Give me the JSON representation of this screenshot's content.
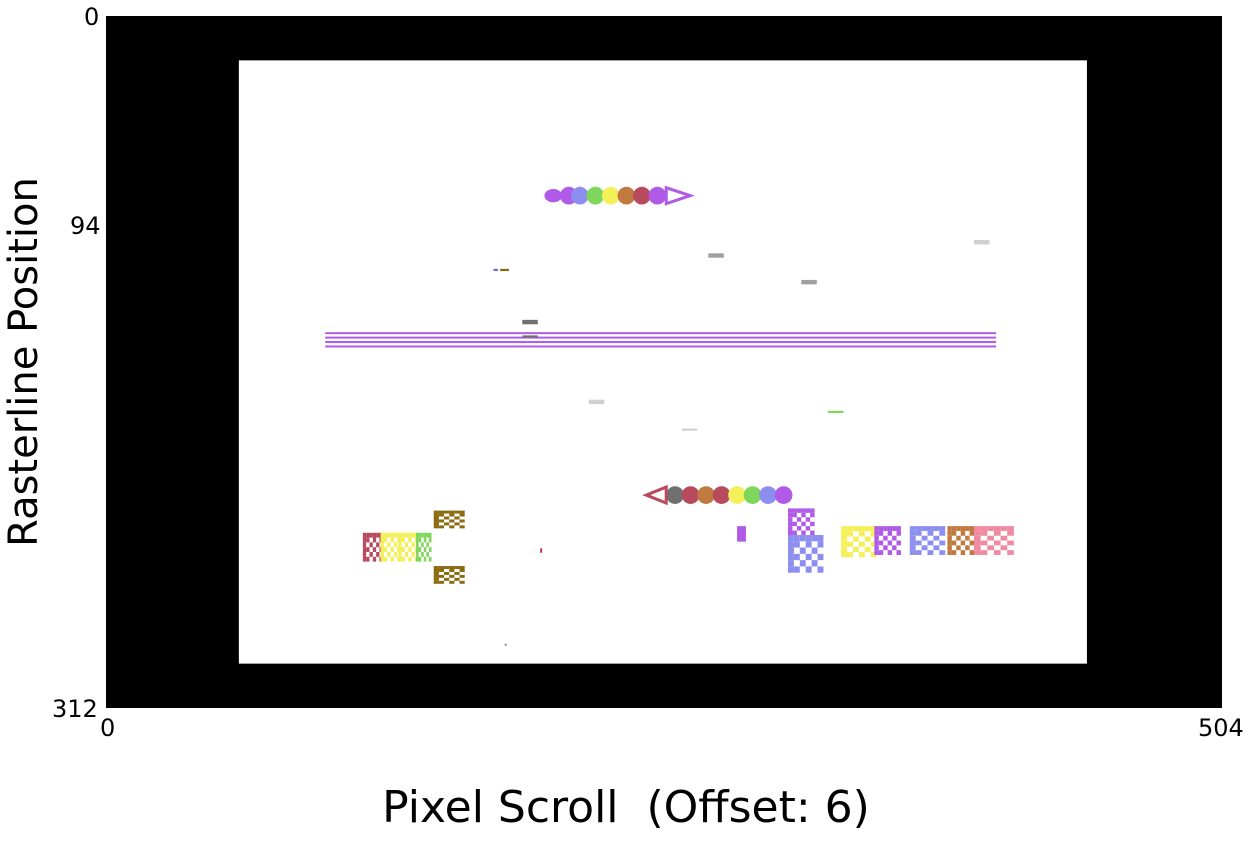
{
  "axes": {
    "xlabel": "Pixel Scroll  (Offset: 6)",
    "ylabel": "Rasterline Position",
    "x_ticks": [
      "0",
      "504"
    ],
    "y_ticks": [
      "0",
      "94",
      "312"
    ],
    "x_range": [
      0,
      504
    ],
    "y_range": [
      0,
      312
    ]
  },
  "screen": {
    "border_color": "#000000",
    "background_color": "#ffffff",
    "visible_area_x": [
      60,
      443
    ],
    "visible_area_y": [
      20,
      292
    ]
  },
  "sprites": [
    {
      "name": "caterpillar-right-segment",
      "x": 198,
      "y": 78,
      "w": 8,
      "h": 6,
      "color": "#b05ae8"
    },
    {
      "name": "caterpillar-right-segment",
      "x": 205,
      "y": 77,
      "w": 8,
      "h": 8,
      "color": "#b05ae8"
    },
    {
      "name": "caterpillar-right-segment",
      "x": 210,
      "y": 77,
      "w": 8,
      "h": 8,
      "color": "#8d8ff0"
    },
    {
      "name": "caterpillar-right-segment",
      "x": 217,
      "y": 77,
      "w": 8,
      "h": 8,
      "color": "#7ed65a"
    },
    {
      "name": "caterpillar-right-segment",
      "x": 224,
      "y": 77,
      "w": 8,
      "h": 8,
      "color": "#f4f05a"
    },
    {
      "name": "caterpillar-right-segment",
      "x": 231,
      "y": 77,
      "w": 8,
      "h": 8,
      "color": "#c07a40"
    },
    {
      "name": "caterpillar-right-segment",
      "x": 238,
      "y": 77,
      "w": 8,
      "h": 8,
      "color": "#b84a5e"
    },
    {
      "name": "caterpillar-right-segment",
      "x": 245,
      "y": 77,
      "w": 8,
      "h": 8,
      "color": "#b05ae8"
    },
    {
      "name": "caterpillar-left-segment",
      "x": 253,
      "y": 212,
      "w": 8,
      "h": 8,
      "color": "#707070"
    },
    {
      "name": "caterpillar-left-segment",
      "x": 260,
      "y": 212,
      "w": 8,
      "h": 8,
      "color": "#b84a5e"
    },
    {
      "name": "caterpillar-left-segment",
      "x": 267,
      "y": 212,
      "w": 8,
      "h": 8,
      "color": "#c07a40"
    },
    {
      "name": "caterpillar-left-segment",
      "x": 274,
      "y": 212,
      "w": 8,
      "h": 8,
      "color": "#b84a5e"
    },
    {
      "name": "caterpillar-left-segment",
      "x": 281,
      "y": 212,
      "w": 8,
      "h": 8,
      "color": "#f4f05a"
    },
    {
      "name": "caterpillar-left-segment",
      "x": 288,
      "y": 212,
      "w": 8,
      "h": 8,
      "color": "#7ed65a"
    },
    {
      "name": "caterpillar-left-segment",
      "x": 295,
      "y": 212,
      "w": 8,
      "h": 8,
      "color": "#8d8ff0"
    },
    {
      "name": "caterpillar-left-segment",
      "x": 302,
      "y": 212,
      "w": 8,
      "h": 8,
      "color": "#b05ae8"
    },
    {
      "name": "small-dash",
      "x": 175,
      "y": 114,
      "w": 2,
      "h": 1,
      "color": "#6b6bd8"
    },
    {
      "name": "small-dash",
      "x": 178,
      "y": 114,
      "w": 4,
      "h": 1,
      "color": "#8b6a10"
    },
    {
      "name": "grey-dash",
      "x": 272,
      "y": 107,
      "w": 7,
      "h": 2,
      "color": "#a0a0a0"
    },
    {
      "name": "grey-dash",
      "x": 314,
      "y": 119,
      "w": 7,
      "h": 2,
      "color": "#a0a0a0"
    },
    {
      "name": "light-dash",
      "x": 392,
      "y": 101,
      "w": 7,
      "h": 2,
      "color": "#d0d0d0"
    },
    {
      "name": "dark-dash",
      "x": 188,
      "y": 137,
      "w": 7,
      "h": 2,
      "color": "#707070"
    },
    {
      "name": "dark-dash",
      "x": 188,
      "y": 144,
      "w": 7,
      "h": 1,
      "color": "#707070"
    },
    {
      "name": "light-dash",
      "x": 218,
      "y": 173,
      "w": 7,
      "h": 2,
      "color": "#d0d0d0"
    },
    {
      "name": "light-dash",
      "x": 260,
      "y": 186,
      "w": 7,
      "h": 1,
      "color": "#d0d0d0"
    },
    {
      "name": "green-dash",
      "x": 326,
      "y": 178,
      "w": 7,
      "h": 1,
      "color": "#7ed65a"
    },
    {
      "name": "maze-glyph",
      "x": 116,
      "y": 233,
      "w": 9,
      "h": 13,
      "color": "#b84a5e"
    },
    {
      "name": "maze-glyph",
      "x": 124,
      "y": 233,
      "w": 9,
      "h": 13,
      "color": "#f4f05a"
    },
    {
      "name": "maze-glyph",
      "x": 132,
      "y": 233,
      "w": 9,
      "h": 13,
      "color": "#f4f05a"
    },
    {
      "name": "maze-glyph",
      "x": 140,
      "y": 233,
      "w": 7,
      "h": 13,
      "color": "#7ed65a"
    },
    {
      "name": "chest-glyph",
      "x": 148,
      "y": 223,
      "w": 14,
      "h": 8,
      "color": "#8b6a10"
    },
    {
      "name": "chest-glyph",
      "x": 148,
      "y": 248,
      "w": 14,
      "h": 8,
      "color": "#8b6a10"
    },
    {
      "name": "tiny-dot",
      "x": 196,
      "y": 240,
      "w": 1,
      "h": 2,
      "color": "#b84a5e"
    },
    {
      "name": "tiny-dot",
      "x": 180,
      "y": 283,
      "w": 1,
      "h": 1,
      "color": "#a0a0a0"
    },
    {
      "name": "violet-block",
      "x": 285,
      "y": 230,
      "w": 4,
      "h": 7,
      "color": "#b05ae8"
    },
    {
      "name": "rocket-glyph",
      "x": 308,
      "y": 222,
      "w": 12,
      "h": 12,
      "color": "#b05ae8"
    },
    {
      "name": "brick-glyph",
      "x": 308,
      "y": 234,
      "w": 16,
      "h": 17,
      "color": "#8d8ff0"
    },
    {
      "name": "crown-glyph",
      "x": 332,
      "y": 230,
      "w": 16,
      "h": 14,
      "color": "#f4f05a"
    },
    {
      "name": "rocket-glyph",
      "x": 347,
      "y": 230,
      "w": 12,
      "h": 13,
      "color": "#b05ae8"
    },
    {
      "name": "brick-glyph",
      "x": 363,
      "y": 230,
      "w": 16,
      "h": 13,
      "color": "#8d8ff0"
    },
    {
      "name": "rocket-glyph",
      "x": 380,
      "y": 230,
      "w": 12,
      "h": 13,
      "color": "#c07a40"
    },
    {
      "name": "om-glyph",
      "x": 392,
      "y": 230,
      "w": 18,
      "h": 13,
      "color": "#f08aa0"
    }
  ],
  "raster_bars": {
    "color": "#b05ae8",
    "x_from": 99,
    "x_to": 402,
    "y_values": [
      143,
      145,
      147,
      149
    ]
  }
}
